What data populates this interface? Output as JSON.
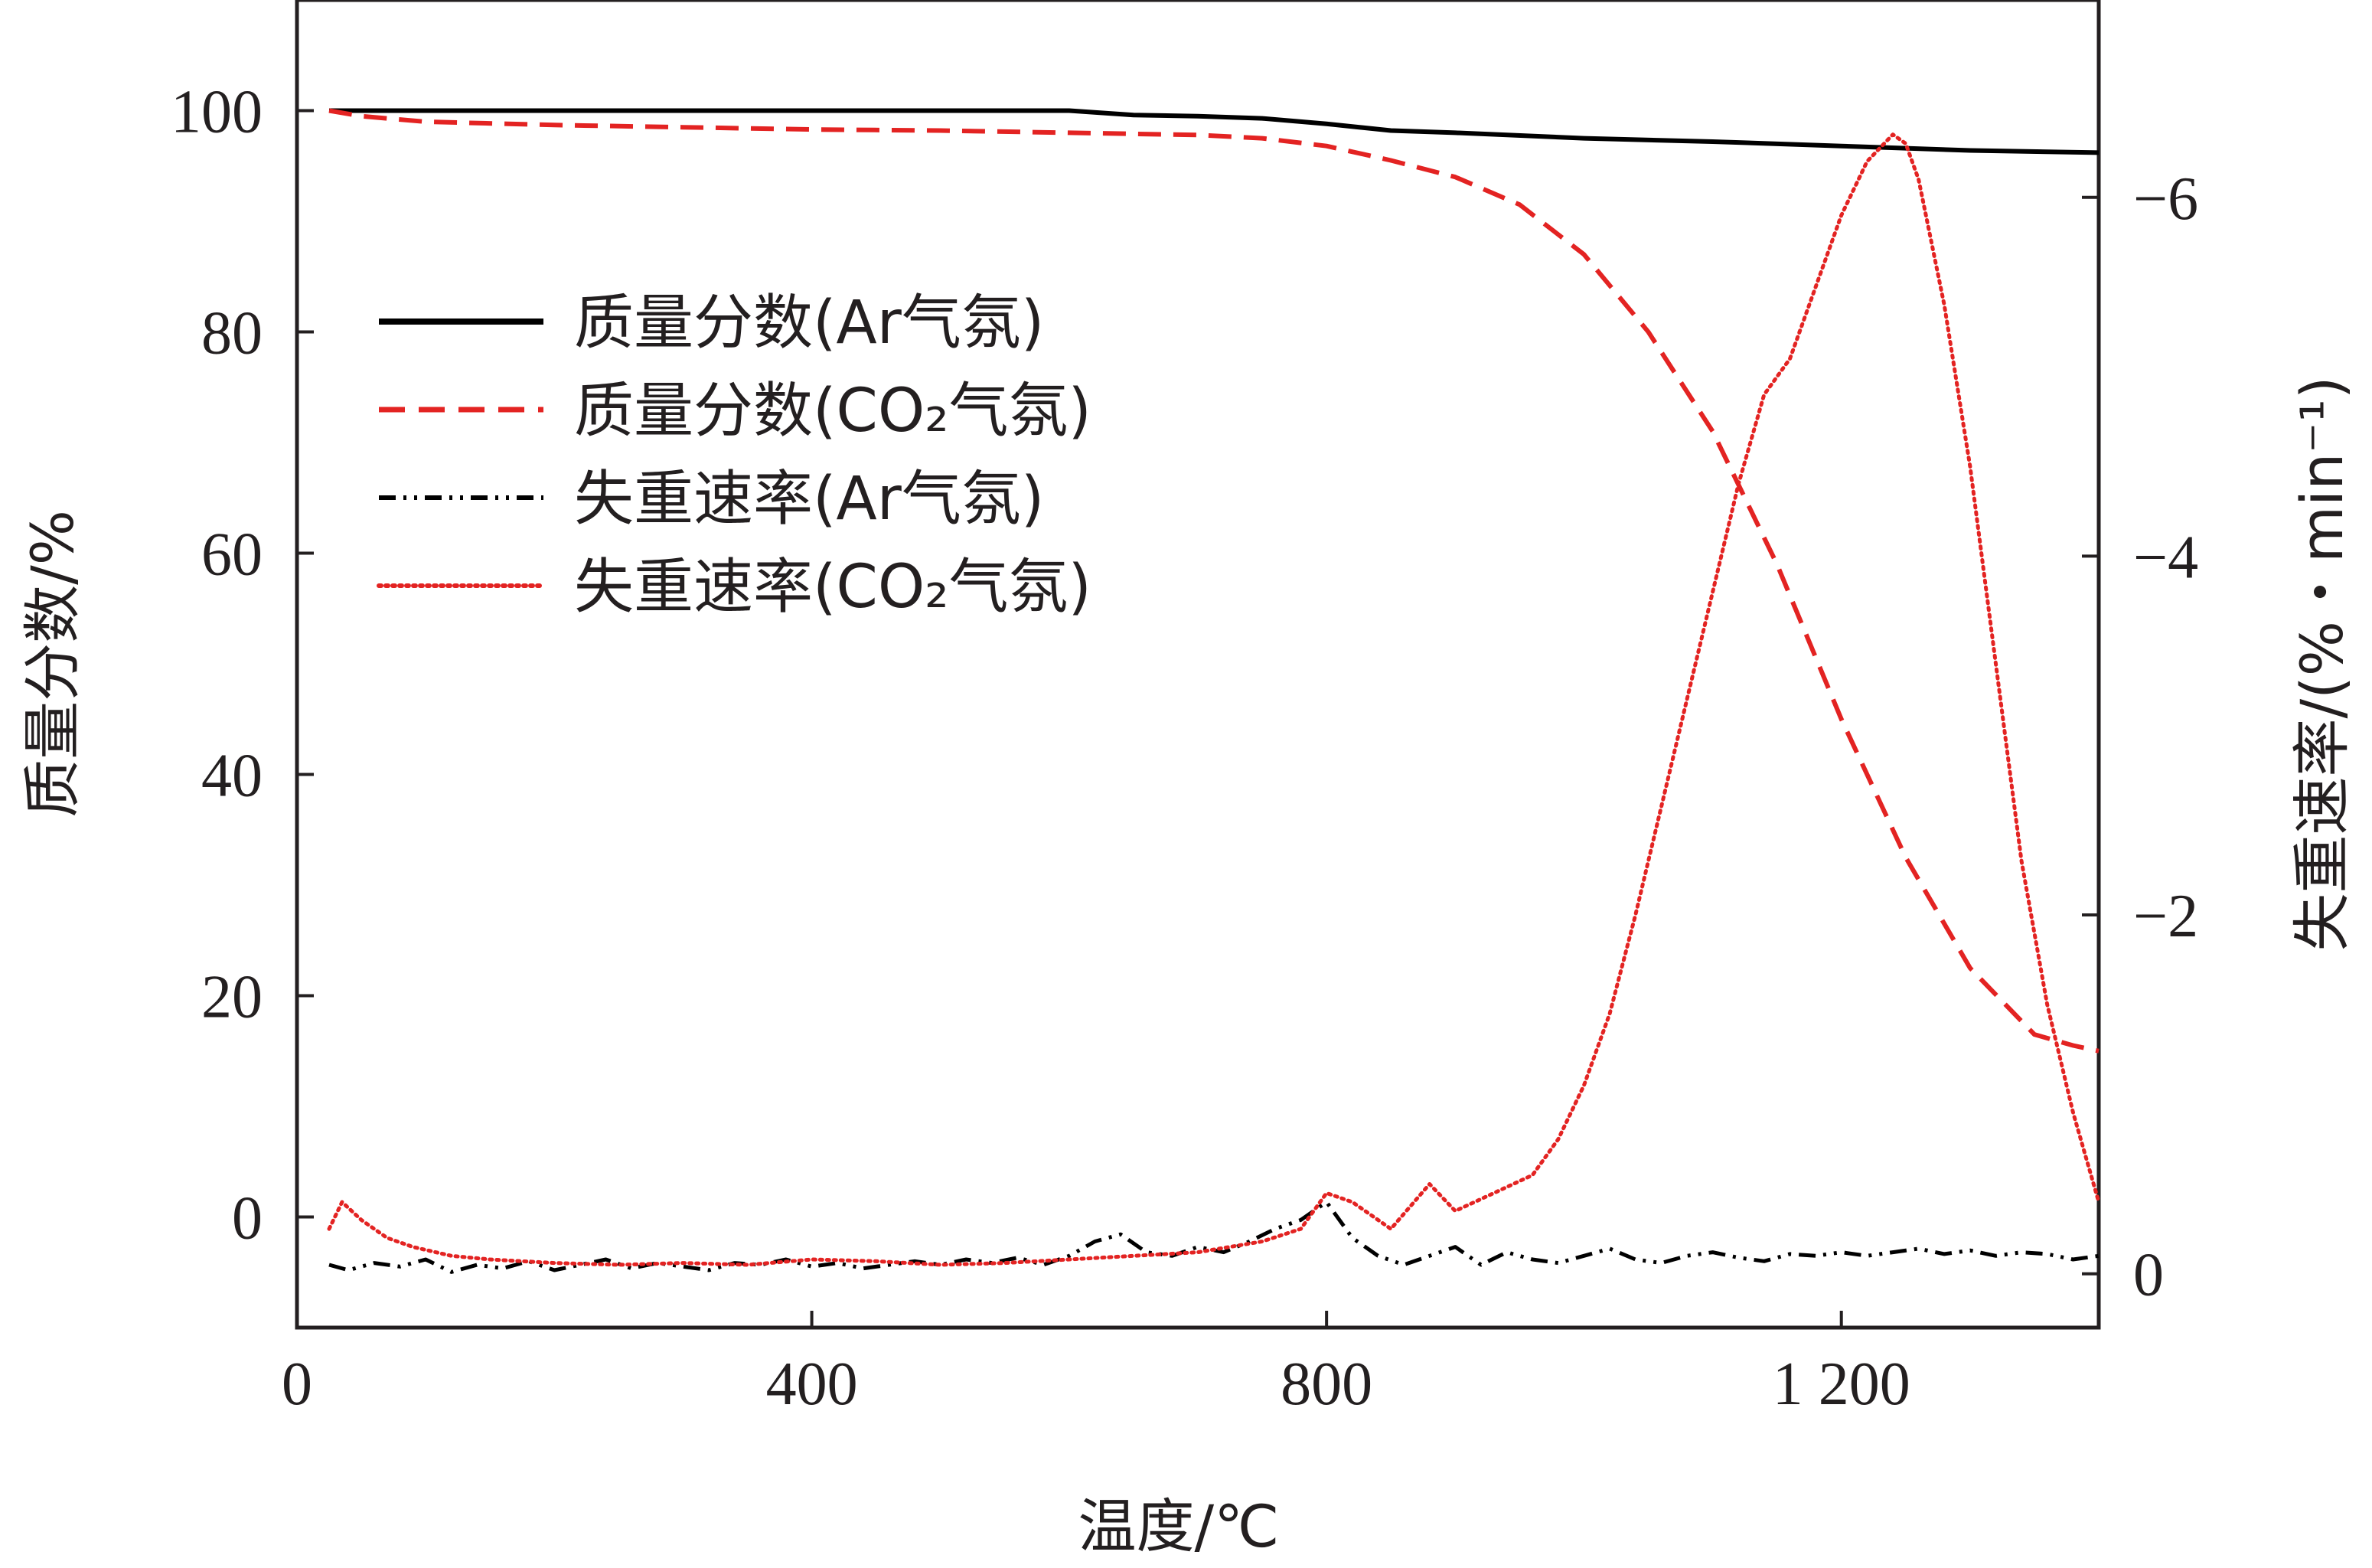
{
  "chart_data": {
    "type": "line",
    "xlabel": "温度/℃",
    "ylabel_left": "质量分数/%",
    "ylabel_right": "失重速率/(%・min⁻¹)",
    "xlim": [
      0,
      1400
    ],
    "x_ticks": [
      {
        "value": 0,
        "label": "0"
      },
      {
        "value": 400,
        "label": "400"
      },
      {
        "value": 800,
        "label": "800"
      },
      {
        "value": 1200,
        "label": "1 200"
      }
    ],
    "ylim_left": [
      -10,
      110
    ],
    "y_ticks_left": [
      {
        "value": 0,
        "label": "0"
      },
      {
        "value": 20,
        "label": "20"
      },
      {
        "value": 40,
        "label": "40"
      },
      {
        "value": 60,
        "label": "60"
      },
      {
        "value": 80,
        "label": "80"
      },
      {
        "value": 100,
        "label": "100"
      }
    ],
    "ylim_right": [
      0.3,
      -7.1
    ],
    "y_ticks_right": [
      {
        "value": 0,
        "label": "0"
      },
      {
        "value": -2,
        "label": "−2"
      },
      {
        "value": -4,
        "label": "−4"
      },
      {
        "value": -6,
        "label": "−6"
      }
    ],
    "legend": {
      "position": "upper-left"
    },
    "series": [
      {
        "name": "质量分数(Ar气氛)",
        "axis": "left",
        "color": "#000000",
        "style": "solid",
        "x": [
          25,
          100,
          200,
          300,
          400,
          500,
          600,
          650,
          700,
          750,
          800,
          850,
          900,
          1000,
          1100,
          1200,
          1300,
          1400
        ],
        "y": [
          100,
          100,
          100,
          100,
          100,
          100,
          100,
          99.6,
          99.5,
          99.3,
          98.8,
          98.2,
          98.0,
          97.5,
          97.2,
          96.8,
          96.4,
          96.2
        ]
      },
      {
        "name": "质量分数(CO₂气氛)",
        "axis": "left",
        "color": "#e32322",
        "style": "dashed",
        "x": [
          25,
          50,
          100,
          200,
          300,
          400,
          500,
          600,
          700,
          750,
          800,
          850,
          900,
          950,
          1000,
          1050,
          1100,
          1150,
          1200,
          1250,
          1300,
          1350,
          1380,
          1400
        ],
        "y": [
          100,
          99.5,
          99.0,
          98.7,
          98.5,
          98.3,
          98.2,
          98.0,
          97.8,
          97.5,
          96.8,
          95.5,
          94.0,
          91.5,
          87.0,
          80.0,
          71.0,
          59.0,
          45.0,
          32.5,
          22.5,
          16.5,
          15.5,
          15.0
        ]
      },
      {
        "name": "失重速率(Ar气氛)",
        "axis": "right",
        "color": "#000000",
        "style": "dash-dot-dot",
        "x": [
          25,
          40,
          60,
          80,
          100,
          120,
          140,
          160,
          180,
          200,
          220,
          240,
          260,
          280,
          300,
          320,
          340,
          360,
          380,
          400,
          420,
          440,
          460,
          480,
          500,
          520,
          540,
          560,
          580,
          600,
          620,
          640,
          660,
          680,
          700,
          720,
          740,
          760,
          780,
          800,
          820,
          840,
          860,
          880,
          900,
          920,
          940,
          960,
          980,
          1000,
          1020,
          1040,
          1060,
          1080,
          1100,
          1120,
          1140,
          1160,
          1180,
          1200,
          1220,
          1240,
          1260,
          1280,
          1300,
          1320,
          1340,
          1360,
          1380,
          1400
        ],
        "y": [
          -0.05,
          -0.02,
          -0.06,
          -0.04,
          -0.08,
          -0.01,
          -0.05,
          -0.03,
          -0.07,
          -0.02,
          -0.05,
          -0.08,
          -0.03,
          -0.06,
          -0.04,
          -0.02,
          -0.06,
          -0.05,
          -0.08,
          -0.04,
          -0.06,
          -0.03,
          -0.05,
          -0.07,
          -0.05,
          -0.08,
          -0.06,
          -0.09,
          -0.05,
          -0.1,
          -0.18,
          -0.22,
          -0.12,
          -0.1,
          -0.15,
          -0.12,
          -0.18,
          -0.25,
          -0.3,
          -0.4,
          -0.2,
          -0.1,
          -0.05,
          -0.1,
          -0.15,
          -0.05,
          -0.12,
          -0.08,
          -0.06,
          -0.1,
          -0.14,
          -0.08,
          -0.06,
          -0.1,
          -0.12,
          -0.09,
          -0.07,
          -0.11,
          -0.1,
          -0.12,
          -0.1,
          -0.12,
          -0.14,
          -0.11,
          -0.13,
          -0.1,
          -0.12,
          -0.11,
          -0.08,
          -0.1
        ]
      },
      {
        "name": "失重速率(CO₂气氛)",
        "axis": "right",
        "color": "#e32322",
        "style": "dotted",
        "x": [
          25,
          35,
          50,
          70,
          90,
          120,
          150,
          200,
          250,
          300,
          350,
          400,
          450,
          500,
          550,
          600,
          650,
          700,
          750,
          780,
          800,
          820,
          850,
          880,
          900,
          930,
          960,
          980,
          1000,
          1020,
          1040,
          1060,
          1080,
          1100,
          1120,
          1140,
          1160,
          1180,
          1200,
          1220,
          1240,
          1250,
          1260,
          1280,
          1300,
          1320,
          1340,
          1360,
          1380,
          1400
        ],
        "y": [
          -0.25,
          -0.4,
          -0.3,
          -0.2,
          -0.15,
          -0.1,
          -0.08,
          -0.06,
          -0.05,
          -0.06,
          -0.05,
          -0.08,
          -0.07,
          -0.05,
          -0.06,
          -0.08,
          -0.1,
          -0.12,
          -0.18,
          -0.25,
          -0.45,
          -0.4,
          -0.25,
          -0.5,
          -0.35,
          -0.45,
          -0.55,
          -0.75,
          -1.05,
          -1.45,
          -2.0,
          -2.6,
          -3.2,
          -3.8,
          -4.4,
          -4.9,
          -5.1,
          -5.5,
          -5.9,
          -6.2,
          -6.35,
          -6.3,
          -6.1,
          -5.4,
          -4.5,
          -3.4,
          -2.3,
          -1.5,
          -0.9,
          -0.4
        ]
      }
    ]
  }
}
